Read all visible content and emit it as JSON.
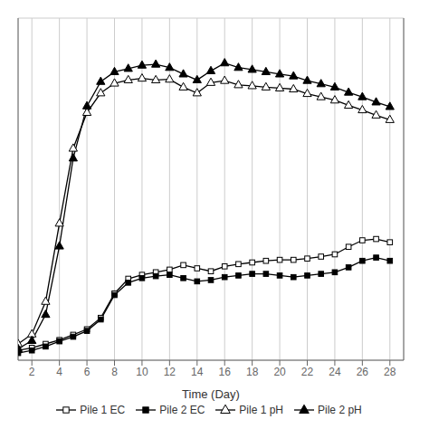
{
  "chart_data": {
    "type": "line",
    "xlabel": "Time (Day)",
    "x": [
      1,
      2,
      3,
      4,
      5,
      6,
      7,
      8,
      9,
      10,
      11,
      12,
      13,
      14,
      15,
      16,
      17,
      18,
      19,
      20,
      21,
      22,
      23,
      24,
      25,
      26,
      27,
      28
    ],
    "xlim": [
      1,
      29
    ],
    "xticks": [
      2,
      4,
      6,
      8,
      10,
      12,
      14,
      16,
      18,
      20,
      22,
      24,
      26,
      28
    ],
    "ylim": [
      0,
      10.5
    ],
    "yticks": [
      0,
      1.5,
      3,
      4.5,
      6,
      7.5,
      9,
      10.5
    ],
    "grid": true,
    "tick_labels": "x",
    "legend": "bottom",
    "series": [
      {
        "name": "Pile 1 EC",
        "color": "#000000",
        "marker": "open-square",
        "values": [
          0.3,
          0.38,
          0.5,
          0.62,
          0.78,
          0.95,
          1.3,
          2.05,
          2.5,
          2.62,
          2.7,
          2.78,
          2.92,
          2.82,
          2.73,
          2.88,
          2.95,
          3.0,
          3.05,
          3.08,
          3.08,
          3.12,
          3.18,
          3.25,
          3.48,
          3.68,
          3.72,
          3.62
        ]
      },
      {
        "name": "Pile 2 EC",
        "color": "#000000",
        "marker": "square",
        "values": [
          0.22,
          0.3,
          0.42,
          0.58,
          0.72,
          0.9,
          1.25,
          2.0,
          2.38,
          2.52,
          2.58,
          2.62,
          2.52,
          2.42,
          2.46,
          2.55,
          2.6,
          2.65,
          2.65,
          2.6,
          2.55,
          2.6,
          2.65,
          2.7,
          2.85,
          3.05,
          3.15,
          3.05
        ]
      },
      {
        "name": "Pile 1 pH",
        "color": "#000000",
        "marker": "open-triangle",
        "values": [
          0.5,
          0.8,
          1.8,
          4.2,
          6.5,
          7.6,
          8.2,
          8.5,
          8.6,
          8.65,
          8.6,
          8.62,
          8.38,
          8.2,
          8.52,
          8.58,
          8.45,
          8.42,
          8.38,
          8.35,
          8.32,
          8.18,
          8.08,
          7.98,
          7.82,
          7.68,
          7.52,
          7.38
        ]
      },
      {
        "name": "Pile 2 pH",
        "color": "#000000",
        "marker": "triangle",
        "values": [
          0.35,
          0.6,
          1.4,
          3.5,
          6.2,
          7.8,
          8.55,
          8.85,
          8.95,
          9.05,
          9.08,
          8.98,
          8.78,
          8.6,
          8.88,
          9.12,
          8.98,
          8.92,
          8.85,
          8.78,
          8.72,
          8.58,
          8.48,
          8.38,
          8.22,
          8.08,
          7.92,
          7.78
        ]
      }
    ]
  }
}
